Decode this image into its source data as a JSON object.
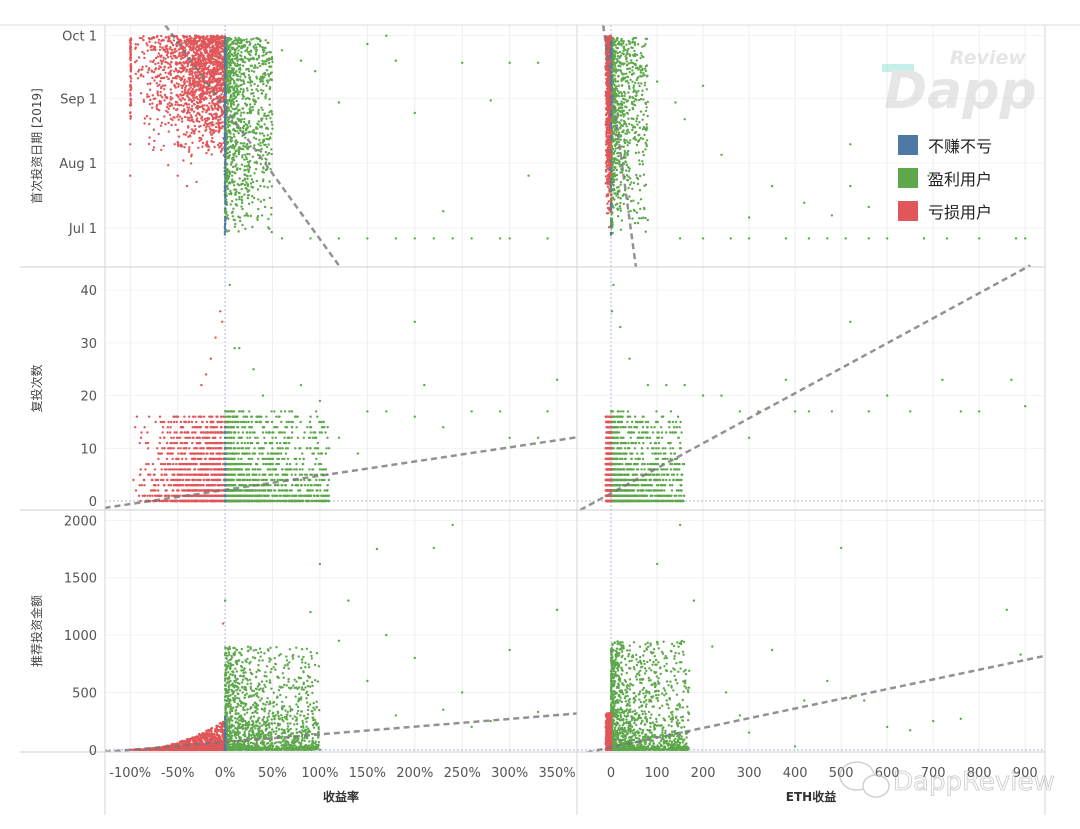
{
  "chart_data": {
    "type": "scatter",
    "title": "",
    "colors": {
      "break_even": "#4e79a7",
      "profit": "#5ea84c",
      "loss": "#e15759"
    },
    "legend": {
      "placement": "top-right",
      "entries": [
        {
          "key": "break_even",
          "label": "不赚不亏"
        },
        {
          "key": "profit",
          "label": "盈利用户"
        },
        {
          "key": "loss",
          "label": "亏损用户"
        }
      ]
    },
    "x_axes": [
      {
        "label": "收益率",
        "range": [
          -126.6,
          371
        ],
        "ticks": [
          -100,
          -50,
          0,
          50,
          100,
          150,
          200,
          250,
          300,
          350
        ],
        "tick_labels": [
          "-100%",
          "-50%",
          "0%",
          "50%",
          "100%",
          "150%",
          "200%",
          "250%",
          "300%",
          "350%"
        ]
      },
      {
        "label": "ETH收益",
        "range": [
          -74,
          943
        ],
        "ticks": [
          0,
          100,
          200,
          300,
          400,
          500,
          600,
          700,
          800,
          900
        ],
        "tick_labels": [
          "0",
          "100",
          "200",
          "300",
          "400",
          "500",
          "600",
          "700",
          "800",
          "900"
        ]
      }
    ],
    "y_axes": [
      {
        "label": "首次投资日期 [2019]",
        "unit": "days since Jul 1",
        "range": [
          -18.7,
          97.1
        ],
        "ticks": [
          0,
          31,
          62,
          92
        ],
        "tick_labels": [
          "Jul 1",
          "Aug 1",
          "Sep 1",
          "Oct 1"
        ]
      },
      {
        "label": "复投次数",
        "range": [
          -1.7,
          44.4
        ],
        "ticks": [
          0,
          10,
          20,
          30,
          40
        ],
        "tick_labels": [
          "0",
          "10",
          "20",
          "30",
          "40"
        ]
      },
      {
        "label": "推荐投资金额",
        "range": [
          -19,
          2090
        ],
        "ticks": [
          0,
          500,
          1000,
          1500,
          2000
        ],
        "tick_labels": [
          "0",
          "500",
          "1000",
          "1500",
          "2000"
        ]
      }
    ],
    "panels": [
      {
        "row": 0,
        "col": 0,
        "trend": [
          [
            -63,
            97
          ],
          [
            121,
            -18.6
          ]
        ],
        "clusters": [
          {
            "cat": "loss",
            "n": 1600,
            "x": [
              -100,
              0
            ],
            "xp": 0.45,
            "y": [
              28,
              92
            ],
            "yp": 0.45
          },
          {
            "cat": "loss",
            "n": 70,
            "x": [
              -100,
              -99
            ],
            "xp": 1,
            "y": [
              40,
              92
            ],
            "yp": 0.5
          },
          {
            "cat": "profit",
            "n": 1300,
            "x": [
              0,
              50
            ],
            "xp": 2.6,
            "y": [
              -3,
              91
            ],
            "yp": 0.6
          },
          {
            "cat": "break_even",
            "n": 160,
            "x": [
              -0.4,
              0.4
            ],
            "xp": 1,
            "y": [
              -6,
              91
            ],
            "yp": 0.7
          }
        ],
        "outliers": [
          [
            -100,
            55
          ],
          [
            -100,
            40
          ],
          [
            -100,
            25
          ],
          [
            -85,
            50
          ],
          [
            -70,
            45
          ],
          [
            -60,
            30
          ],
          [
            -50,
            41
          ],
          [
            -50,
            25
          ],
          [
            -40,
            20
          ],
          [
            -30,
            22
          ],
          [
            60,
            85
          ],
          [
            80,
            80
          ],
          [
            95,
            75
          ],
          [
            120,
            60
          ],
          [
            150,
            88
          ],
          [
            170,
            92
          ],
          [
            180,
            80
          ],
          [
            200,
            55
          ],
          [
            230,
            8
          ],
          [
            250,
            79
          ],
          [
            280,
            61
          ],
          [
            300,
            79
          ],
          [
            320,
            25
          ],
          [
            330,
            79
          ],
          [
            60,
            -5
          ],
          [
            90,
            -5
          ],
          [
            120,
            -5
          ],
          [
            150,
            -5
          ],
          [
            180,
            -5
          ],
          [
            200,
            -5
          ],
          [
            220,
            -5
          ],
          [
            240,
            -5
          ],
          [
            260,
            -5
          ],
          [
            290,
            -5
          ],
          [
            300,
            -5
          ],
          [
            340,
            -5
          ]
        ]
      },
      {
        "row": 0,
        "col": 1,
        "trend": [
          [
            -17,
            97
          ],
          [
            54,
            -18.6
          ]
        ],
        "clusters": [
          {
            "cat": "loss",
            "n": 900,
            "x": [
              -12,
              0
            ],
            "xp": 0.6,
            "y": [
              -3,
              92
            ],
            "yp": 0.45
          },
          {
            "cat": "profit",
            "n": 1100,
            "x": [
              0,
              80
            ],
            "xp": 3,
            "y": [
              -3,
              91
            ],
            "yp": 0.6
          },
          {
            "cat": "break_even",
            "n": 60,
            "x": [
              -0.5,
              0.5
            ],
            "xp": 1,
            "y": [
              -6,
              91
            ],
            "yp": 0.7
          }
        ],
        "outliers": [
          [
            100,
            70
          ],
          [
            140,
            60
          ],
          [
            160,
            52
          ],
          [
            200,
            68
          ],
          [
            240,
            35
          ],
          [
            300,
            5
          ],
          [
            350,
            20
          ],
          [
            420,
            12
          ],
          [
            480,
            6
          ],
          [
            520,
            20
          ],
          [
            560,
            10
          ],
          [
            650,
            12
          ],
          [
            690,
            25
          ],
          [
            520,
            40
          ],
          [
            150,
            -5
          ],
          [
            200,
            -5
          ],
          [
            260,
            -5
          ],
          [
            300,
            -5
          ],
          [
            380,
            -5
          ],
          [
            430,
            -5
          ],
          [
            470,
            -5
          ],
          [
            510,
            -5
          ],
          [
            560,
            -5
          ],
          [
            600,
            -5
          ],
          [
            680,
            -5
          ],
          [
            730,
            -5
          ],
          [
            800,
            -5
          ],
          [
            880,
            -5
          ],
          [
            900,
            -5
          ]
        ]
      },
      {
        "row": 1,
        "col": 0,
        "trend": [
          [
            -127,
            -1.3
          ],
          [
            371,
            12.1
          ]
        ],
        "clusters": [
          {
            "cat": "loss",
            "n": 1200,
            "x": [
              -100,
              0
            ],
            "xp": 0.45,
            "y": [
              0,
              16
            ],
            "yp": 2.2,
            "int": true
          },
          {
            "cat": "profit",
            "n": 1600,
            "x": [
              0,
              110
            ],
            "xp": 2.2,
            "y": [
              0,
              17
            ],
            "yp": 2.4,
            "int": true
          },
          {
            "cat": "break_even",
            "n": 60,
            "x": [
              -0.4,
              0.4
            ],
            "xp": 1,
            "y": [
              0,
              14
            ],
            "yp": 2,
            "int": true
          }
        ],
        "outliers": [
          [
            -5,
            36
          ],
          [
            -3,
            34
          ],
          [
            -10,
            31
          ],
          [
            -15,
            27
          ],
          [
            -20,
            24
          ],
          [
            -25,
            22
          ],
          [
            5,
            41
          ],
          [
            10,
            29
          ],
          [
            15,
            29
          ],
          [
            30,
            25
          ],
          [
            40,
            20
          ],
          [
            80,
            22
          ],
          [
            100,
            19
          ],
          [
            150,
            17
          ],
          [
            170,
            17
          ],
          [
            200,
            16
          ],
          [
            210,
            22
          ],
          [
            230,
            14
          ],
          [
            260,
            17
          ],
          [
            290,
            17
          ],
          [
            300,
            12
          ],
          [
            330,
            12
          ],
          [
            350,
            23
          ],
          [
            340,
            17
          ],
          [
            200,
            34
          ],
          [
            120,
            12
          ],
          [
            140,
            9
          ]
        ]
      },
      {
        "row": 1,
        "col": 1,
        "trend": [
          [
            -67,
            -1.7
          ],
          [
            911,
            44.7
          ]
        ],
        "clusters": [
          {
            "cat": "loss",
            "n": 900,
            "x": [
              -12,
              0
            ],
            "xp": 0.6,
            "y": [
              0,
              16
            ],
            "yp": 2.2,
            "int": true
          },
          {
            "cat": "profit",
            "n": 1500,
            "x": [
              0,
              160
            ],
            "xp": 2.8,
            "y": [
              0,
              17
            ],
            "yp": 2.4,
            "int": true
          }
        ],
        "outliers": [
          [
            2,
            36
          ],
          [
            5,
            41
          ],
          [
            20,
            33
          ],
          [
            40,
            27
          ],
          [
            80,
            22
          ],
          [
            120,
            22
          ],
          [
            160,
            22
          ],
          [
            200,
            20
          ],
          [
            240,
            20
          ],
          [
            280,
            17
          ],
          [
            320,
            17
          ],
          [
            400,
            17
          ],
          [
            430,
            17
          ],
          [
            480,
            17
          ],
          [
            520,
            34
          ],
          [
            560,
            17
          ],
          [
            600,
            20
          ],
          [
            650,
            17
          ],
          [
            720,
            23
          ],
          [
            760,
            17
          ],
          [
            800,
            17
          ],
          [
            870,
            23
          ],
          [
            900,
            18
          ],
          [
            380,
            23
          ],
          [
            300,
            12
          ]
        ]
      },
      {
        "row": 2,
        "col": 0,
        "trend": [
          [
            -127,
            -18
          ],
          [
            371,
            317
          ]
        ],
        "clusters": [
          {
            "cat": "loss",
            "n": 1300,
            "x": [
              -100,
              0
            ],
            "xp": 0.55,
            "y": [
              0,
              260
            ],
            "yp": 2.5,
            "taper": true
          },
          {
            "cat": "profit",
            "n": 1600,
            "x": [
              0,
              100
            ],
            "xp": 1.8,
            "y": [
              0,
              900
            ],
            "yp": 2.8
          },
          {
            "cat": "break_even",
            "n": 40,
            "x": [
              -0.4,
              0.4
            ],
            "xp": 1,
            "y": [
              0,
              300
            ],
            "yp": 2
          }
        ],
        "outliers": [
          [
            0,
            1300
          ],
          [
            -2,
            1100
          ],
          [
            100,
            1620
          ],
          [
            160,
            1750
          ],
          [
            220,
            1760
          ],
          [
            240,
            1960
          ],
          [
            130,
            1300
          ],
          [
            170,
            1000
          ],
          [
            200,
            800
          ],
          [
            250,
            500
          ],
          [
            280,
            250
          ],
          [
            300,
            870
          ],
          [
            330,
            330
          ],
          [
            350,
            1220
          ],
          [
            230,
            350
          ],
          [
            260,
            200
          ],
          [
            150,
            600
          ],
          [
            120,
            950
          ],
          [
            90,
            1200
          ],
          [
            180,
            300
          ]
        ]
      },
      {
        "row": 2,
        "col": 1,
        "trend": [
          [
            -74,
            -41
          ],
          [
            943,
            819
          ]
        ],
        "clusters": [
          {
            "cat": "loss",
            "n": 900,
            "x": [
              -12,
              0
            ],
            "xp": 0.6,
            "y": [
              0,
              320
            ],
            "yp": 2.4
          },
          {
            "cat": "profit",
            "n": 1600,
            "x": [
              0,
              170
            ],
            "xp": 2.2,
            "y": [
              0,
              950
            ],
            "yp": 2.8
          }
        ],
        "outliers": [
          [
            100,
            1620
          ],
          [
            150,
            1960
          ],
          [
            180,
            1300
          ],
          [
            220,
            900
          ],
          [
            250,
            500
          ],
          [
            280,
            300
          ],
          [
            350,
            870
          ],
          [
            420,
            430
          ],
          [
            470,
            600
          ],
          [
            500,
            1760
          ],
          [
            520,
            450
          ],
          [
            550,
            430
          ],
          [
            600,
            200
          ],
          [
            650,
            170
          ],
          [
            700,
            250
          ],
          [
            760,
            270
          ],
          [
            860,
            1220
          ],
          [
            890,
            830
          ],
          [
            400,
            30
          ],
          [
            300,
            150
          ]
        ]
      }
    ]
  },
  "watermarks": {
    "logo_top": "Dapp",
    "logo_top_sub": "Review",
    "bottom": "DappReview"
  }
}
